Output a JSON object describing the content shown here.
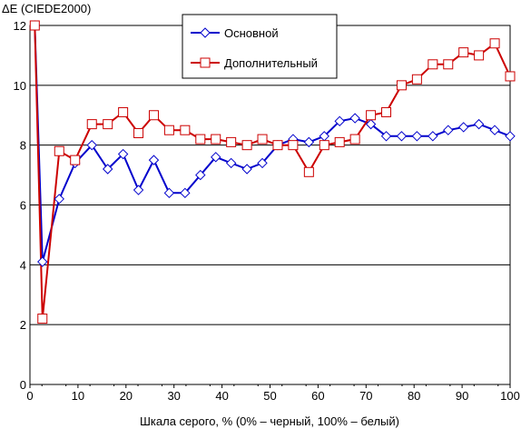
{
  "chart_data": {
    "type": "line",
    "ylabel": "ΔE (CIEDE2000)",
    "xlabel": "Шкала серого, % (0% – черный, 100% – белый)",
    "xlim": [
      0,
      100
    ],
    "ylim": [
      0,
      12
    ],
    "xticks": [
      "0",
      "10",
      "20",
      "30",
      "40",
      "50",
      "60",
      "70",
      "80",
      "90",
      "100"
    ],
    "yticks": [
      "0",
      "2",
      "4",
      "6",
      "8",
      "10",
      "12"
    ],
    "grid": "horizontal",
    "legend_position": "top-center",
    "series": [
      {
        "name": "Основной",
        "color": "#0000cc",
        "marker": "diamond",
        "x": [
          1,
          2.6,
          6.1,
          9.4,
          12.9,
          16.2,
          19.4,
          22.6,
          25.8,
          29,
          32.3,
          35.5,
          38.7,
          41.9,
          45.2,
          48.4,
          51.6,
          54.8,
          58.1,
          61.3,
          64.5,
          67.7,
          71,
          74.2,
          77.4,
          80.6,
          83.9,
          87.1,
          90.3,
          93.5,
          96.8,
          100
        ],
        "y": [
          12,
          4.1,
          6.2,
          7.4,
          8.0,
          7.2,
          7.7,
          6.5,
          7.5,
          6.4,
          6.4,
          7.0,
          7.6,
          7.4,
          7.2,
          7.4,
          8.0,
          8.2,
          8.1,
          8.3,
          8.8,
          8.9,
          8.7,
          8.3,
          8.3,
          8.3,
          8.3,
          8.5,
          8.6,
          8.7,
          8.5,
          8.3
        ]
      },
      {
        "name": "Дополнительный",
        "color": "#cc0000",
        "marker": "square",
        "x": [
          1,
          2.6,
          6.1,
          9.4,
          12.9,
          16.2,
          19.4,
          22.6,
          25.8,
          29,
          32.3,
          35.5,
          38.7,
          41.9,
          45.2,
          48.4,
          51.6,
          54.8,
          58.1,
          61.3,
          64.5,
          67.7,
          71,
          74.2,
          77.4,
          80.6,
          83.9,
          87.1,
          90.3,
          93.5,
          96.8,
          100
        ],
        "y": [
          12,
          2.2,
          7.8,
          7.5,
          8.7,
          8.7,
          9.1,
          8.4,
          9.0,
          8.5,
          8.5,
          8.2,
          8.2,
          8.1,
          8.0,
          8.2,
          8.0,
          8.0,
          7.1,
          8.0,
          8.1,
          8.2,
          9.0,
          9.1,
          10.0,
          10.2,
          10.7,
          10.7,
          11.1,
          11.0,
          11.4,
          10.3
        ]
      }
    ]
  }
}
